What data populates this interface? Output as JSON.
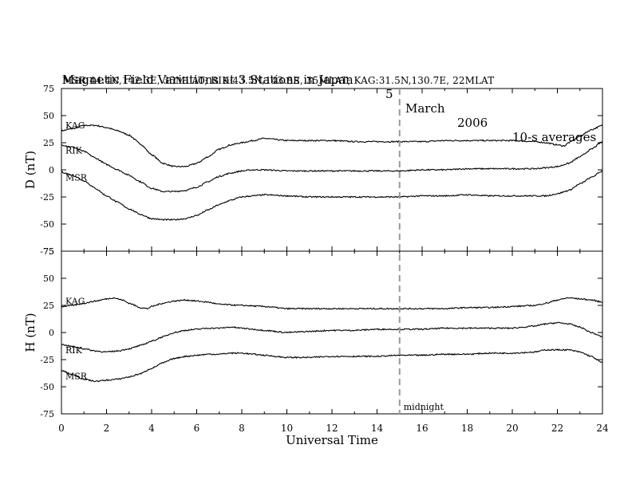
{
  "header": {
    "title_main": "Magnetic Field Variations at 3 Stations in Japan",
    "title_date_day": "5",
    "title_date_month": "March",
    "title_date_year": "2006",
    "title_averaging": "10-s averages",
    "subtitle": "MSR:44.4N,142.3E, 35MLAT;  RIK:43.5N,143.8E, 35MLAT;  KAG:31.5N,130.7E, 22MLAT"
  },
  "chart_data": [
    {
      "type": "line",
      "panel": "D",
      "ylabel": "D (nT)",
      "ylim": [
        -75,
        75
      ],
      "yticks": [
        -75,
        -50,
        -25,
        0,
        25,
        50,
        75
      ],
      "xlim": [
        0,
        24
      ],
      "series": [
        {
          "name": "KAG",
          "x": [
            0,
            0.5,
            1,
            1.5,
            2,
            2.5,
            3,
            3.5,
            4,
            4.5,
            5,
            5.5,
            6,
            6.5,
            7,
            7.5,
            8,
            8.5,
            9,
            10,
            11,
            12,
            13,
            14,
            15,
            16,
            17,
            18,
            19,
            20,
            21,
            21.5,
            22,
            22.3,
            22.5,
            23,
            23.5,
            24
          ],
          "y": [
            36,
            38,
            41,
            41,
            39,
            36,
            32,
            24,
            14,
            6,
            3,
            3,
            6,
            12,
            19,
            23,
            25,
            27,
            29,
            27,
            27,
            27,
            26,
            26,
            26,
            26,
            27,
            27,
            27,
            27,
            26,
            25,
            23,
            22,
            25,
            31,
            37,
            41
          ]
        },
        {
          "name": "RIK",
          "x": [
            0,
            0.5,
            1,
            1.5,
            2,
            2.5,
            3,
            3.5,
            4,
            4.5,
            5,
            5.5,
            6,
            6.5,
            7,
            7.5,
            8,
            8.5,
            9,
            10,
            11,
            12,
            13,
            14,
            15,
            16,
            17,
            18,
            19,
            20,
            21,
            21.5,
            22,
            22.5,
            23,
            23.5,
            24
          ],
          "y": [
            23,
            21,
            17,
            11,
            5,
            0,
            -5,
            -11,
            -17,
            -20,
            -20,
            -19,
            -16,
            -11,
            -6,
            -3,
            -1,
            0,
            0,
            -1,
            -1,
            -1,
            -1,
            -1,
            -1,
            0,
            0,
            1,
            1,
            1,
            1,
            2,
            3,
            6,
            12,
            19,
            26
          ]
        },
        {
          "name": "MSR",
          "x": [
            0,
            0.5,
            1,
            1.5,
            2,
            2.5,
            3,
            3.5,
            4,
            4.5,
            5,
            5.5,
            6,
            6.5,
            7,
            7.5,
            8,
            8.5,
            9,
            10,
            11,
            12,
            13,
            14,
            15,
            16,
            17,
            18,
            19,
            20,
            21,
            21.5,
            22,
            22.5,
            23,
            23.5,
            24
          ],
          "y": [
            -2,
            -5,
            -10,
            -17,
            -24,
            -30,
            -36,
            -41,
            -45,
            -46,
            -46,
            -45,
            -42,
            -37,
            -32,
            -28,
            -25,
            -24,
            -23,
            -24,
            -25,
            -25,
            -25,
            -25,
            -25,
            -24,
            -24,
            -23,
            -24,
            -24,
            -24,
            -24,
            -22,
            -19,
            -13,
            -7,
            -1
          ]
        }
      ],
      "annotations": []
    },
    {
      "type": "line",
      "panel": "H",
      "ylabel": "H (nT)",
      "ylim": [
        -75,
        75
      ],
      "yticks": [
        -75,
        -50,
        -25,
        0,
        25,
        50,
        75
      ],
      "xlim": [
        0,
        24
      ],
      "xticks": [
        0,
        2,
        4,
        6,
        8,
        10,
        12,
        14,
        16,
        18,
        20,
        22,
        24
      ],
      "xlabel": "Universal Time",
      "series": [
        {
          "name": "KAG",
          "x": [
            0,
            0.5,
            1,
            1.5,
            2,
            2.3,
            2.7,
            3,
            3.5,
            3.8,
            4,
            4.5,
            5,
            5.5,
            6,
            6.5,
            7,
            8,
            9,
            10,
            11,
            12,
            13,
            14,
            15,
            16,
            17,
            18,
            19,
            20,
            21,
            21.5,
            22,
            22.5,
            23,
            23.5,
            24
          ],
          "y": [
            24,
            25,
            27,
            29,
            31,
            32,
            30,
            27,
            23,
            22,
            24,
            27,
            29,
            30,
            29,
            28,
            26,
            25,
            24,
            22,
            22,
            22,
            22,
            22,
            22,
            22,
            22,
            23,
            23,
            24,
            25,
            27,
            30,
            32,
            31,
            30,
            28
          ]
        },
        {
          "name": "RIK",
          "x": [
            0,
            0.5,
            1,
            1.5,
            2,
            2.5,
            3,
            3.5,
            4,
            4.5,
            5,
            5.5,
            6,
            6.5,
            7,
            7.5,
            8,
            8.5,
            9,
            10,
            11,
            12,
            13,
            14,
            15,
            16,
            17,
            18,
            19,
            20,
            20.5,
            21,
            21.5,
            22,
            22.5,
            23,
            23.5,
            24
          ],
          "y": [
            -11,
            -13,
            -15,
            -17,
            -18,
            -17,
            -15,
            -12,
            -8,
            -4,
            0,
            2,
            3,
            4,
            4,
            5,
            4,
            3,
            2,
            0,
            1,
            2,
            2,
            3,
            3,
            3,
            4,
            4,
            4,
            4,
            5,
            6,
            8,
            9,
            8,
            5,
            0,
            -4
          ]
        },
        {
          "name": "MSR",
          "x": [
            0,
            0.5,
            1,
            1.5,
            2,
            2.5,
            3,
            3.5,
            4,
            4.5,
            5,
            5.5,
            6,
            6.5,
            7,
            7.5,
            8,
            8.5,
            9,
            10,
            11,
            12,
            13,
            14,
            15,
            16,
            17,
            18,
            19,
            20,
            21,
            21.5,
            22,
            22.5,
            23,
            23.5,
            24
          ],
          "y": [
            -35,
            -39,
            -43,
            -45,
            -44,
            -43,
            -41,
            -38,
            -33,
            -28,
            -24,
            -22,
            -21,
            -20,
            -20,
            -19,
            -19,
            -20,
            -21,
            -23,
            -23,
            -22,
            -22,
            -22,
            -21,
            -21,
            -20,
            -20,
            -19,
            -19,
            -18,
            -16,
            -16,
            -16,
            -18,
            -22,
            -28
          ]
        }
      ],
      "annotations": [
        {
          "x": 15,
          "text": "midnight"
        }
      ]
    }
  ]
}
